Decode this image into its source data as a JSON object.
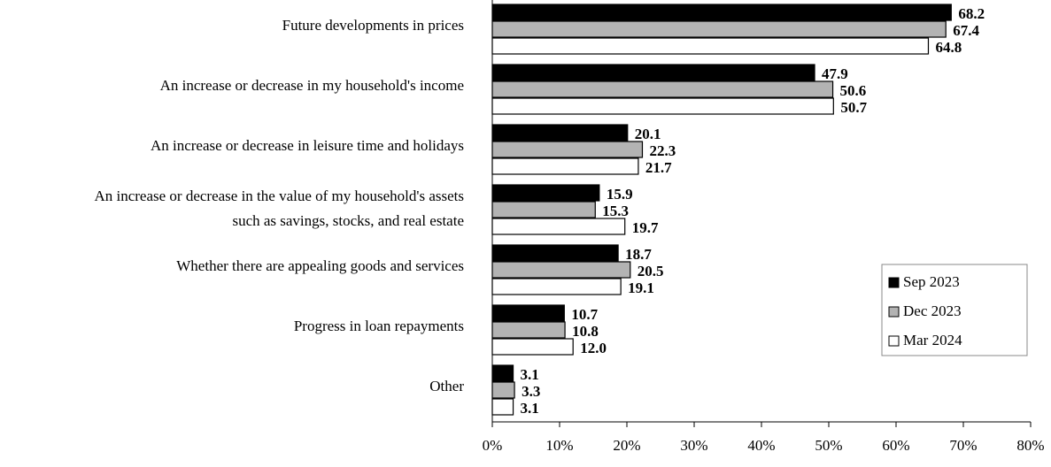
{
  "chart_data": {
    "type": "barh",
    "categories": [
      "Future developments in prices",
      "An increase or decrease in my household's income",
      "An increase or decrease in leisure time and holidays",
      [
        "An increase or decrease in the value of my household's assets",
        "such as savings, stocks, and real estate"
      ],
      "Whether there are appealing goods and services",
      "Progress in loan repayments",
      "Other"
    ],
    "series": [
      {
        "name": "Sep 2023",
        "color": "#000000",
        "values": [
          68.2,
          47.9,
          20.1,
          15.9,
          18.7,
          10.7,
          3.1
        ],
        "value_labels": [
          "68.2",
          "47.9",
          "20.1",
          "15.9",
          "18.7",
          "10.7",
          "3.1"
        ]
      },
      {
        "name": "Dec 2023",
        "color": "#b3b3b3",
        "values": [
          67.4,
          50.6,
          22.3,
          15.3,
          20.5,
          10.8,
          3.3
        ],
        "value_labels": [
          "67.4",
          "50.6",
          "22.3",
          "15.3",
          "20.5",
          "10.8",
          "3.3"
        ]
      },
      {
        "name": "Mar 2024",
        "color": "#ffffff",
        "values": [
          64.8,
          50.7,
          21.7,
          19.7,
          19.1,
          12.0,
          3.1
        ],
        "value_labels": [
          "64.8",
          "50.7",
          "21.7",
          "19.7",
          "19.1",
          "12.0",
          "3.1"
        ]
      }
    ],
    "xlim": [
      0,
      80
    ],
    "xticks": [
      {
        "value": 0,
        "label": "0%"
      },
      {
        "value": 10,
        "label": "10%"
      },
      {
        "value": 20,
        "label": "20%"
      },
      {
        "value": 30,
        "label": "30%"
      },
      {
        "value": 40,
        "label": "40%"
      },
      {
        "value": 50,
        "label": "50%"
      },
      {
        "value": 60,
        "label": "60%"
      },
      {
        "value": 70,
        "label": "70%"
      },
      {
        "value": 80,
        "label": "80%"
      }
    ],
    "legend": "right"
  }
}
